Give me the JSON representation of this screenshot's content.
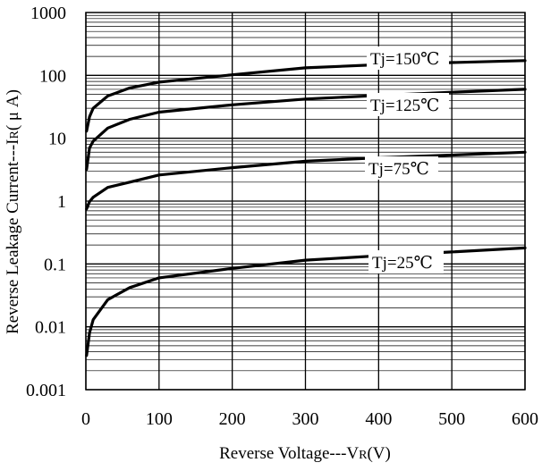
{
  "chart_data": {
    "type": "line",
    "xlabel": "Reverse Voltage---V",
    "xlabel_sub": "R",
    "xlabel_unit": "(V)",
    "ylabel": "Reverse Leakage Current---I",
    "ylabel_sub": "R",
    "ylabel_unit": "( μ A)",
    "xlim": [
      0,
      600
    ],
    "ylim": [
      0.001,
      1000
    ],
    "yscale": "log",
    "grid": true,
    "x_ticks": [
      "0",
      "100",
      "200",
      "300",
      "400",
      "500",
      "600"
    ],
    "y_ticks": [
      "0.001",
      "0.01",
      "0.1",
      "1",
      "10",
      "100",
      "1000"
    ],
    "x_tick_values": [
      0,
      100,
      200,
      300,
      400,
      500,
      600
    ],
    "y_tick_values": [
      0.001,
      0.01,
      0.1,
      1,
      10,
      100,
      1000
    ],
    "series": [
      {
        "name": "Tj=150℃",
        "x": [
          1,
          5,
          10,
          30,
          60,
          100,
          200,
          300,
          400,
          500,
          600
        ],
        "y": [
          13,
          22,
          30,
          47,
          63,
          78,
          102,
          132,
          148,
          160,
          172
        ]
      },
      {
        "name": "Tj=125℃",
        "x": [
          1,
          5,
          10,
          30,
          60,
          100,
          200,
          300,
          400,
          500,
          600
        ],
        "y": [
          3.2,
          7,
          9,
          14.5,
          20,
          26,
          34,
          42,
          48,
          54,
          60
        ]
      },
      {
        "name": "Tj=75℃",
        "x": [
          1,
          5,
          10,
          30,
          60,
          100,
          200,
          300,
          400,
          500,
          600
        ],
        "y": [
          0.75,
          0.98,
          1.15,
          1.65,
          2.0,
          2.6,
          3.4,
          4.3,
          4.9,
          5.4,
          6.0
        ]
      },
      {
        "name": "Tj=25℃",
        "x": [
          1,
          5,
          10,
          30,
          60,
          100,
          200,
          300,
          400,
          500,
          600
        ],
        "y": [
          0.0035,
          0.008,
          0.013,
          0.027,
          0.042,
          0.06,
          0.085,
          0.115,
          0.135,
          0.155,
          0.18
        ]
      }
    ]
  }
}
